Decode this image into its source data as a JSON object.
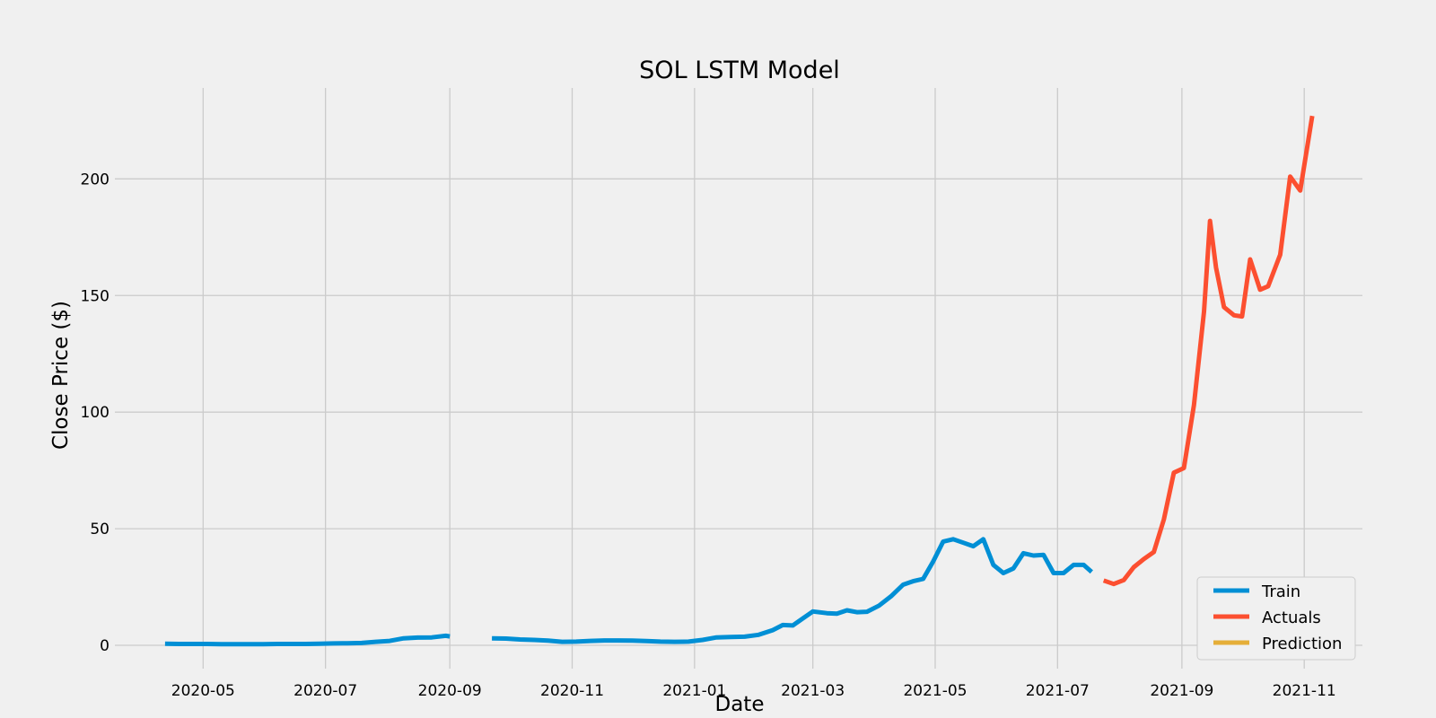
{
  "chart_data": {
    "type": "line",
    "title": "SOL LSTM Model",
    "xlabel": "Date",
    "ylabel": "Close Price ($)",
    "xlim": [
      "2020-03-18",
      "2021-11-30"
    ],
    "ylim": [
      -10,
      239
    ],
    "x_ticks": [
      "2020-05-01",
      "2020-07-01",
      "2020-09-01",
      "2020-11-01",
      "2021-01-01",
      "2021-03-01",
      "2021-05-01",
      "2021-07-01",
      "2021-09-01",
      "2021-11-01"
    ],
    "x_tick_labels": [
      "2020-05",
      "2020-07",
      "2020-09",
      "2020-11",
      "2021-01",
      "2021-03",
      "2021-05",
      "2021-07",
      "2021-09",
      "2021-11"
    ],
    "y_ticks": [
      0,
      50,
      100,
      150,
      200
    ],
    "y_tick_labels": [
      "0",
      "50",
      "100",
      "150",
      "200"
    ],
    "grid": true,
    "legend_position": "bottom-right",
    "series": [
      {
        "name": "Train",
        "color": "#008fd5",
        "segments": [
          [
            [
              "2020-04-12",
              0.7
            ],
            [
              "2020-04-19",
              0.6
            ],
            [
              "2020-04-26",
              0.6
            ],
            [
              "2020-05-03",
              0.6
            ],
            [
              "2020-05-10",
              0.5
            ],
            [
              "2020-05-17",
              0.5
            ],
            [
              "2020-05-24",
              0.5
            ],
            [
              "2020-05-31",
              0.5
            ],
            [
              "2020-06-07",
              0.6
            ],
            [
              "2020-06-14",
              0.6
            ],
            [
              "2020-06-21",
              0.6
            ],
            [
              "2020-06-28",
              0.7
            ],
            [
              "2020-07-05",
              0.8
            ],
            [
              "2020-07-12",
              0.9
            ],
            [
              "2020-07-19",
              1.0
            ],
            [
              "2020-07-26",
              1.5
            ],
            [
              "2020-08-02",
              1.9
            ],
            [
              "2020-08-09",
              3.0
            ],
            [
              "2020-08-16",
              3.3
            ],
            [
              "2020-08-23",
              3.4
            ],
            [
              "2020-08-30",
              4.1
            ],
            [
              "2020-09-01",
              3.8
            ]
          ],
          [
            [
              "2020-09-22",
              3.0
            ],
            [
              "2020-09-29",
              2.9
            ],
            [
              "2020-10-06",
              2.5
            ],
            [
              "2020-10-13",
              2.3
            ],
            [
              "2020-10-20",
              2.0
            ],
            [
              "2020-10-27",
              1.5
            ],
            [
              "2020-11-03",
              1.6
            ],
            [
              "2020-11-10",
              1.9
            ],
            [
              "2020-11-17",
              2.1
            ],
            [
              "2020-11-24",
              2.1
            ],
            [
              "2020-12-01",
              2.0
            ],
            [
              "2020-12-08",
              1.8
            ],
            [
              "2020-12-15",
              1.6
            ],
            [
              "2020-12-22",
              1.5
            ],
            [
              "2020-12-29",
              1.6
            ],
            [
              "2021-01-05",
              2.3
            ],
            [
              "2021-01-12",
              3.4
            ],
            [
              "2021-01-19",
              3.6
            ],
            [
              "2021-01-26",
              3.7
            ],
            [
              "2021-02-02",
              4.5
            ],
            [
              "2021-02-09",
              6.5
            ],
            [
              "2021-02-14",
              8.7
            ],
            [
              "2021-02-19",
              8.5
            ],
            [
              "2021-02-24",
              11.5
            ],
            [
              "2021-03-01",
              14.5
            ],
            [
              "2021-03-08",
              13.8
            ],
            [
              "2021-03-13",
              13.6
            ],
            [
              "2021-03-18",
              15.0
            ],
            [
              "2021-03-23",
              14.2
            ],
            [
              "2021-03-28",
              14.4
            ],
            [
              "2021-04-03",
              17.0
            ],
            [
              "2021-04-09",
              21.0
            ],
            [
              "2021-04-15",
              26.0
            ],
            [
              "2021-04-20",
              27.5
            ],
            [
              "2021-04-25",
              28.5
            ],
            [
              "2021-04-30",
              36.0
            ],
            [
              "2021-05-05",
              44.5
            ],
            [
              "2021-05-10",
              45.5
            ],
            [
              "2021-05-15",
              44.0
            ],
            [
              "2021-05-20",
              42.5
            ],
            [
              "2021-05-25",
              45.5
            ],
            [
              "2021-05-30",
              34.5
            ],
            [
              "2021-06-04",
              31.0
            ],
            [
              "2021-06-09",
              33.0
            ],
            [
              "2021-06-14",
              39.5
            ],
            [
              "2021-06-19",
              38.5
            ],
            [
              "2021-06-24",
              38.8
            ],
            [
              "2021-06-29",
              31.0
            ],
            [
              "2021-07-04",
              31.0
            ],
            [
              "2021-07-09",
              34.5
            ],
            [
              "2021-07-14",
              34.5
            ],
            [
              "2021-07-18",
              31.5
            ]
          ]
        ]
      },
      {
        "name": "Actuals",
        "color": "#fc4f30",
        "segments": [
          [
            [
              "2021-07-24",
              27.8
            ],
            [
              "2021-07-29",
              26.3
            ],
            [
              "2021-08-03",
              28.0
            ],
            [
              "2021-08-08",
              33.5
            ],
            [
              "2021-08-13",
              37.0
            ],
            [
              "2021-08-18",
              40.0
            ],
            [
              "2021-08-23",
              54.0
            ],
            [
              "2021-08-28",
              74.0
            ],
            [
              "2021-09-02",
              76.0
            ],
            [
              "2021-09-07",
              103.0
            ],
            [
              "2021-09-12",
              143.0
            ],
            [
              "2021-09-15",
              182.0
            ],
            [
              "2021-09-18",
              162.0
            ],
            [
              "2021-09-22",
              145.0
            ],
            [
              "2021-09-27",
              141.5
            ],
            [
              "2021-10-01",
              141.0
            ],
            [
              "2021-10-05",
              165.5
            ],
            [
              "2021-10-10",
              152.5
            ],
            [
              "2021-10-14",
              154.0
            ],
            [
              "2021-10-20",
              167.5
            ],
            [
              "2021-10-25",
              201.0
            ],
            [
              "2021-10-30",
              195.0
            ],
            [
              "2021-11-05",
              227.0
            ]
          ]
        ]
      },
      {
        "name": "Prediction",
        "color": "#e5ae38",
        "segments": []
      }
    ]
  }
}
